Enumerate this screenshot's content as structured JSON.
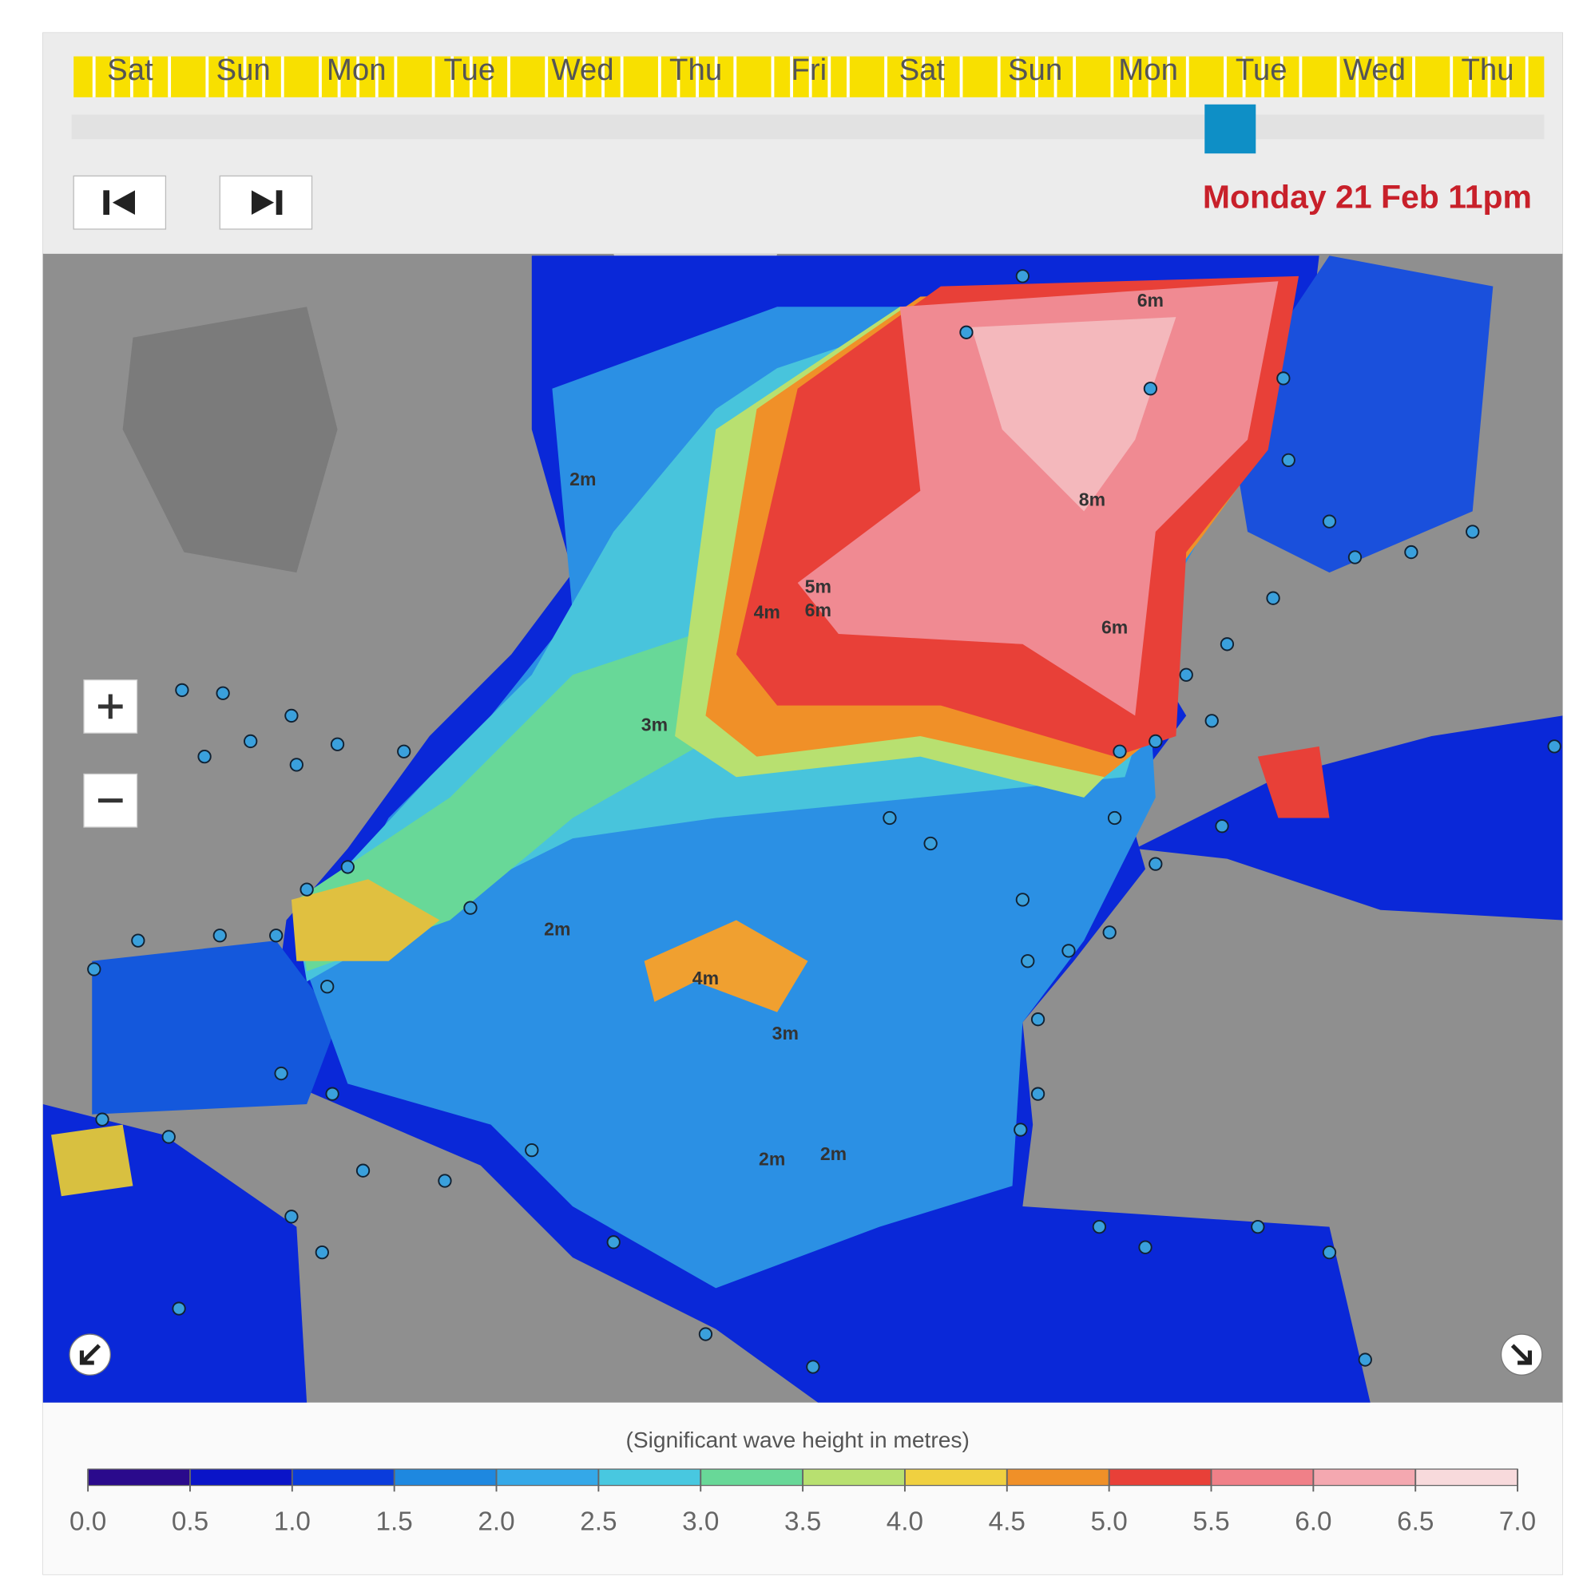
{
  "timeline": {
    "days": [
      "Sat",
      "Sun",
      "Mon",
      "Tue",
      "Wed",
      "Thu",
      "Fri",
      "Sat",
      "Sun",
      "Mon",
      "Tue",
      "Wed",
      "Thu"
    ]
  },
  "current_time": "Monday 21 Feb 11pm",
  "map": {
    "contour_labels": [
      "2m",
      "3m",
      "4m",
      "5m",
      "6m",
      "8m",
      "6m",
      "6m",
      "2m",
      "4m",
      "3m",
      "2m",
      "2m"
    ]
  },
  "legend": {
    "title": "(Significant wave height in metres)",
    "ticks": [
      {
        "value": 0,
        "label": "0.0"
      },
      {
        "value": 0.5,
        "label": "0.5"
      },
      {
        "value": 1,
        "label": "1.0"
      },
      {
        "value": 1.5,
        "label": "1.5"
      },
      {
        "value": 2,
        "label": "2.0"
      },
      {
        "value": 2.5,
        "label": "2.5"
      },
      {
        "value": 3,
        "label": "3.0"
      },
      {
        "value": 3.5,
        "label": "3.5"
      },
      {
        "value": 4,
        "label": "4.0"
      },
      {
        "value": 4.5,
        "label": "4.5"
      },
      {
        "value": 5,
        "label": "5.0"
      },
      {
        "value": 5.5,
        "label": "5.5"
      },
      {
        "value": 6,
        "label": "6.0"
      },
      {
        "value": 6.5,
        "label": "6.5"
      },
      {
        "value": 7,
        "label": "7.0"
      }
    ],
    "colors": [
      "#2a0a8c",
      "#0a14c8",
      "#0a3cdc",
      "#1e88e0",
      "#34a8e8",
      "#48c8e0",
      "#68d898",
      "#b8e070",
      "#f0d040",
      "#f09028",
      "#e84038",
      "#f08088",
      "#f4a8b0",
      "#f8dadc"
    ]
  }
}
